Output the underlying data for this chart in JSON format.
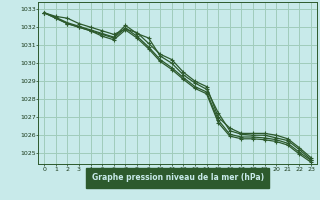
{
  "title": "Graphe pression niveau de la mer (hPa)",
  "bg_color": "#c8eaea",
  "plot_bg_color": "#c8eaea",
  "grid_color": "#a0ccbb",
  "line_color": "#2d5a2d",
  "marker_color": "#2d5a2d",
  "text_color": "#1a3a1a",
  "label_bg": "#2d5a2d",
  "label_fg": "#c8eaea",
  "ylim": [
    1024.4,
    1033.4
  ],
  "yticks": [
    1025,
    1026,
    1027,
    1028,
    1029,
    1030,
    1031,
    1032,
    1033
  ],
  "xlim": [
    -0.5,
    23.5
  ],
  "xticks": [
    0,
    1,
    2,
    3,
    4,
    5,
    6,
    7,
    8,
    9,
    10,
    11,
    12,
    13,
    14,
    15,
    16,
    17,
    18,
    19,
    20,
    21,
    22,
    23
  ],
  "series": [
    [
      1032.8,
      1032.6,
      1032.5,
      1032.2,
      1032.0,
      1031.8,
      1031.6,
      1031.9,
      1031.7,
      1031.1,
      1030.5,
      1030.2,
      1029.5,
      1029.0,
      1028.7,
      1027.0,
      1026.4,
      1026.1,
      1026.1,
      1026.1,
      1026.0,
      1025.8,
      1025.3,
      1024.75
    ],
    [
      1032.8,
      1032.55,
      1032.25,
      1032.05,
      1031.85,
      1031.65,
      1031.45,
      1032.1,
      1031.65,
      1031.4,
      1030.4,
      1030.0,
      1029.35,
      1028.9,
      1028.55,
      1027.25,
      1026.25,
      1026.05,
      1026.0,
      1026.0,
      1025.85,
      1025.7,
      1025.2,
      1024.65
    ],
    [
      1032.8,
      1032.5,
      1032.2,
      1032.0,
      1031.8,
      1031.6,
      1031.4,
      1031.95,
      1031.5,
      1030.9,
      1030.2,
      1029.75,
      1029.2,
      1028.7,
      1028.4,
      1026.85,
      1026.05,
      1025.9,
      1025.9,
      1025.85,
      1025.75,
      1025.55,
      1025.05,
      1024.6
    ],
    [
      1032.8,
      1032.5,
      1032.2,
      1032.0,
      1031.8,
      1031.5,
      1031.3,
      1031.85,
      1031.4,
      1030.8,
      1030.1,
      1029.65,
      1029.1,
      1028.6,
      1028.3,
      1026.7,
      1025.95,
      1025.8,
      1025.8,
      1025.75,
      1025.65,
      1025.45,
      1024.95,
      1024.5
    ]
  ]
}
